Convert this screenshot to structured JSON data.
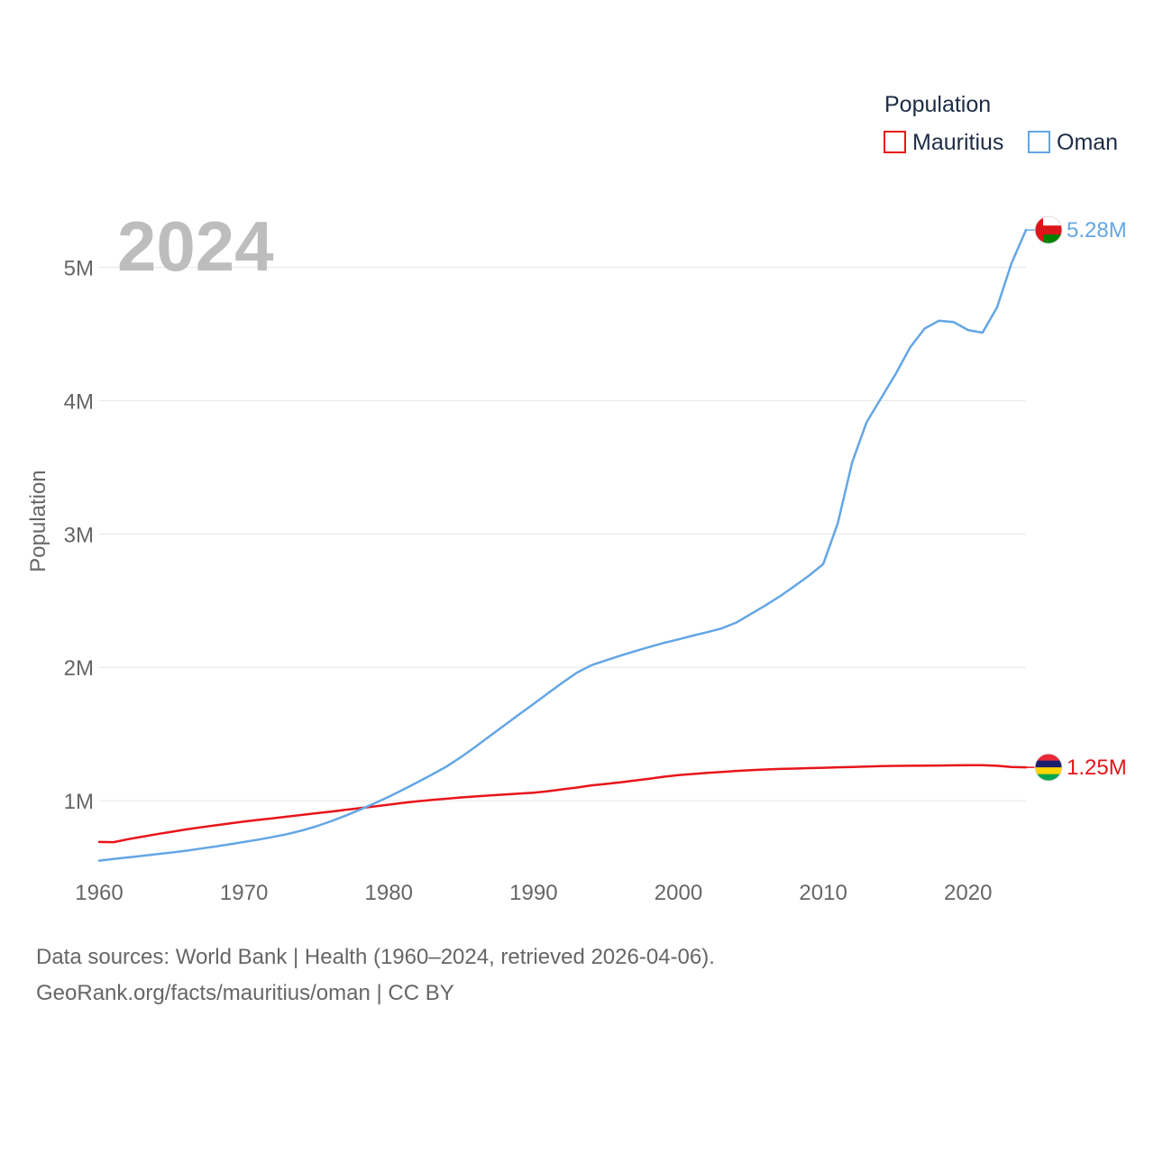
{
  "chart_data": {
    "type": "line",
    "title": "Population",
    "year_stamp": "2024",
    "ylabel": "Population",
    "xlabel": "",
    "xlim": [
      1960,
      2024
    ],
    "ylim": [
      0.48,
      5.45
    ],
    "x_ticks": [
      1960,
      1970,
      1980,
      1990,
      2000,
      2010,
      2020
    ],
    "y_ticks": [
      {
        "value": 1,
        "label": "1M"
      },
      {
        "value": 2,
        "label": "2M"
      },
      {
        "value": 3,
        "label": "3M"
      },
      {
        "value": 4,
        "label": "4M"
      },
      {
        "value": 5,
        "label": "5M"
      }
    ],
    "unit": "millions",
    "x": [
      1960,
      1961,
      1962,
      1963,
      1964,
      1965,
      1966,
      1967,
      1968,
      1969,
      1970,
      1971,
      1972,
      1973,
      1974,
      1975,
      1976,
      1977,
      1978,
      1979,
      1980,
      1981,
      1982,
      1983,
      1984,
      1985,
      1986,
      1987,
      1988,
      1989,
      1990,
      1991,
      1992,
      1993,
      1994,
      1995,
      1996,
      1997,
      1998,
      1999,
      2000,
      2001,
      2002,
      2003,
      2004,
      2005,
      2006,
      2007,
      2008,
      2009,
      2010,
      2011,
      2012,
      2013,
      2014,
      2015,
      2016,
      2017,
      2018,
      2019,
      2020,
      2021,
      2022,
      2023,
      2024
    ],
    "series": [
      {
        "name": "Mauritius",
        "color": "#e8141b",
        "end_label": "1.25M",
        "flag": "mauritius-flag",
        "values": [
          0.69,
          0.689,
          0.711,
          0.73,
          0.749,
          0.767,
          0.784,
          0.8,
          0.815,
          0.829,
          0.843,
          0.856,
          0.868,
          0.88,
          0.893,
          0.906,
          0.918,
          0.931,
          0.944,
          0.957,
          0.97,
          0.984,
          0.996,
          1.006,
          1.015,
          1.024,
          1.032,
          1.039,
          1.046,
          1.053,
          1.06,
          1.071,
          1.085,
          1.099,
          1.115,
          1.126,
          1.137,
          1.151,
          1.165,
          1.18,
          1.192,
          1.2,
          1.208,
          1.216,
          1.223,
          1.229,
          1.234,
          1.238,
          1.241,
          1.244,
          1.247,
          1.25,
          1.253,
          1.256,
          1.259,
          1.261,
          1.262,
          1.263,
          1.264,
          1.265,
          1.266,
          1.266,
          1.262,
          1.252,
          1.25
        ]
      },
      {
        "name": "Oman",
        "color": "#63a6e5",
        "end_label": "5.28M",
        "flag": "oman-flag",
        "values": [
          0.55,
          0.563,
          0.575,
          0.587,
          0.599,
          0.611,
          0.625,
          0.64,
          0.656,
          0.673,
          0.69,
          0.708,
          0.728,
          0.75,
          0.776,
          0.808,
          0.845,
          0.887,
          0.932,
          0.98,
          1.03,
          1.083,
          1.139,
          1.197,
          1.257,
          1.328,
          1.406,
          1.487,
          1.567,
          1.647,
          1.726,
          1.806,
          1.886,
          1.961,
          2.016,
          2.053,
          2.088,
          2.121,
          2.153,
          2.183,
          2.21,
          2.238,
          2.264,
          2.293,
          2.336,
          2.4,
          2.464,
          2.532,
          2.608,
          2.687,
          2.774,
          3.079,
          3.54,
          3.84,
          4.02,
          4.2,
          4.4,
          4.541,
          4.6,
          4.59,
          4.53,
          4.51,
          4.7,
          5.03,
          5.28
        ]
      }
    ],
    "source_lines": [
      "Data sources: World Bank | Health (1960–2024, retrieved 2026-04-06).",
      "GeoRank.org/facts/mauritius/oman | CC BY"
    ]
  }
}
